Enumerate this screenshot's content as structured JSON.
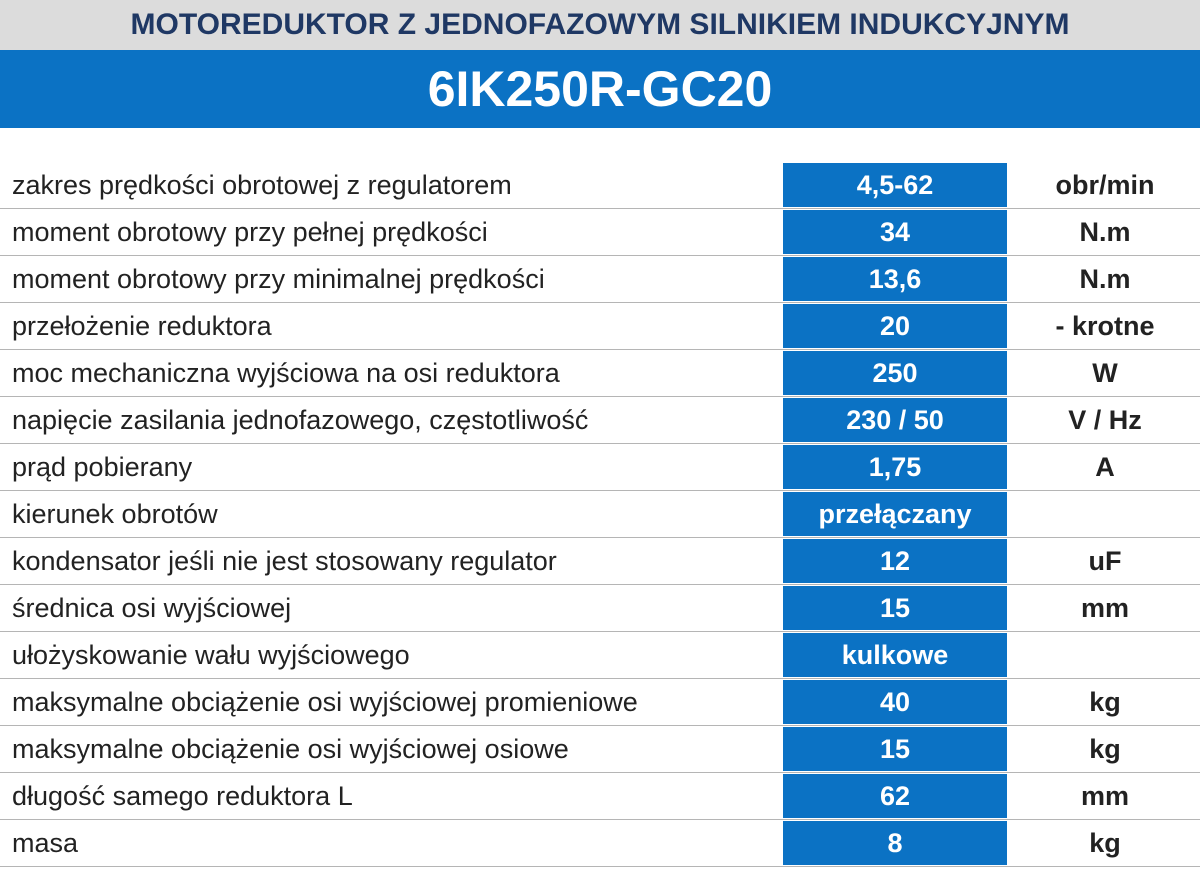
{
  "header": {
    "subtitle": "MOTOREDUKTOR Z JEDNOFAZOWYM SILNIKIEM INDUKCYJNYM",
    "title": "6IK250R-GC20"
  },
  "table": {
    "rows": [
      {
        "label": "zakres prędkości obrotowej z regulatorem",
        "value": "4,5-62",
        "unit": "obr/min"
      },
      {
        "label": "moment obrotowy przy pełnej prędkości",
        "value": "34",
        "unit": "N.m"
      },
      {
        "label": "moment obrotowy przy minimalnej prędkości",
        "value": "13,6",
        "unit": "N.m"
      },
      {
        "label": "przełożenie reduktora",
        "value": "20",
        "unit": "- krotne"
      },
      {
        "label": "moc mechaniczna wyjściowa na osi reduktora",
        "value": "250",
        "unit": "W"
      },
      {
        "label": "napięcie zasilania jednofazowego, częstotliwość",
        "value": "230 / 50",
        "unit": "V / Hz"
      },
      {
        "label": "prąd pobierany",
        "value": "1,75",
        "unit": "A"
      },
      {
        "label": "kierunek obrotów",
        "value": "przełączany"
      },
      {
        "label": "kondensator jeśli nie jest stosowany regulator",
        "value": "12",
        "unit": "uF"
      },
      {
        "label": "średnica osi wyjściowej",
        "value": "15",
        "unit": "mm"
      },
      {
        "label": "ułożyskowanie wału wyjściowego",
        "value": "kulkowe"
      },
      {
        "label": "maksymalne obciążenie osi wyjściowej promieniowe",
        "value": "40",
        "unit": "kg"
      },
      {
        "label": "maksymalne obciążenie osi wyjściowej osiowe",
        "value": "15",
        "unit": "kg"
      },
      {
        "label": "długość samego reduktora L",
        "value": "62",
        "unit": "mm"
      },
      {
        "label": "masa",
        "value": "8",
        "unit": "kg"
      }
    ]
  }
}
